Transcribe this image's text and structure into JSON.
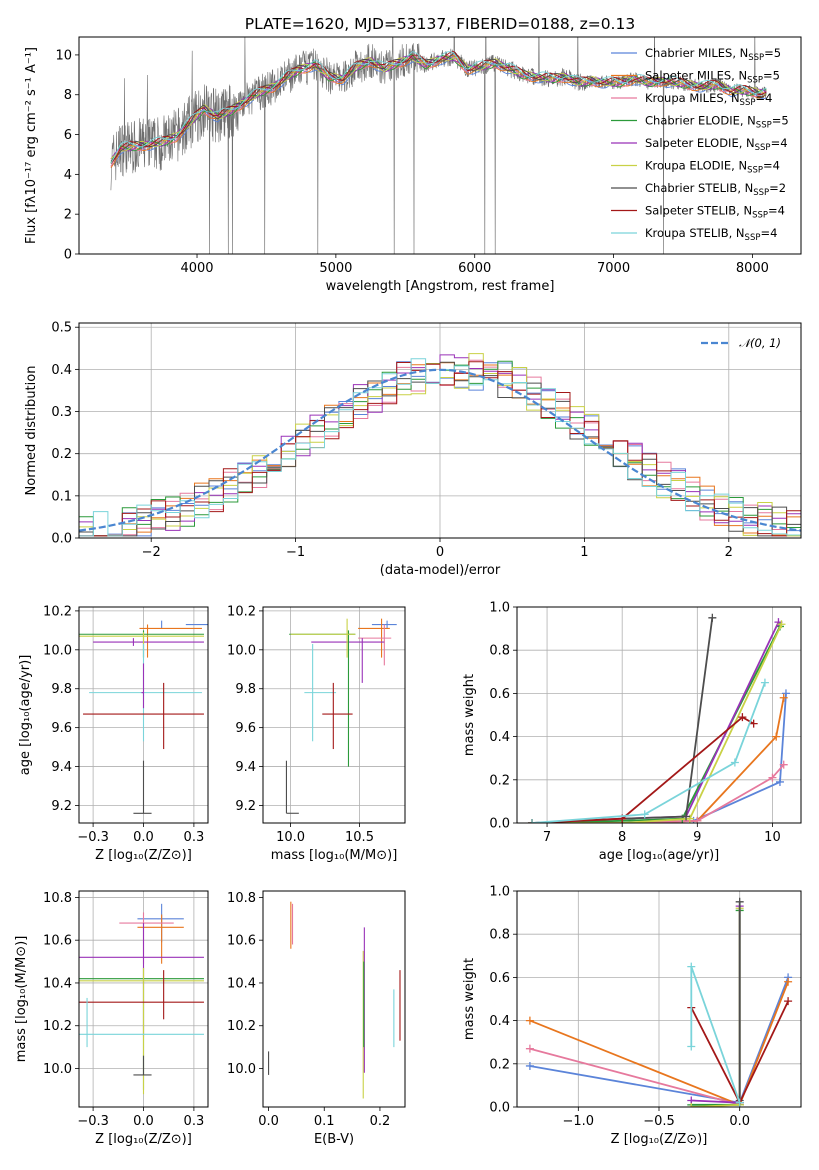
{
  "page": {
    "title": "PLATE=1620, MJD=53137, FIBERID=0188, z=0.13"
  },
  "model_colors": [
    "#5b84d9",
    "#e8761e",
    "#e6799d",
    "#2b9a3a",
    "#9932b8",
    "#c9d146",
    "#4d4d4d",
    "#a31818",
    "#7ad4da"
  ],
  "chart_data": [
    {
      "id": "spectrum",
      "type": "line",
      "title": "PLATE=1620, MJD=53137, FIBERID=0188, z=0.13",
      "xlabel": "wavelength [Angstrom, rest frame]",
      "ylabel": "Flux [fλ10⁻¹⁷ erg cm⁻² s⁻¹ A⁻¹]",
      "xlim": [
        3150,
        8350
      ],
      "ylim": [
        0,
        10.9
      ],
      "xticks": [
        4000,
        5000,
        6000,
        7000,
        8000
      ],
      "yticks": [
        0,
        2,
        4,
        6,
        8,
        10
      ],
      "legend_position": "top-right",
      "legend": [
        {
          "label": "Chabrier MILES, N",
          "sub": "SSP",
          "tail": "=5",
          "color": "#5b84d9"
        },
        {
          "label": "Salpeter MILES, N",
          "sub": "SSP",
          "tail": "=5",
          "color": "#e8761e"
        },
        {
          "label": "Kroupa MILES, N",
          "sub": "SSP",
          "tail": "=4",
          "color": "#e6799d"
        },
        {
          "label": "Chabrier ELODIE, N",
          "sub": "SSP",
          "tail": "=5",
          "color": "#2b9a3a"
        },
        {
          "label": "Salpeter ELODIE, N",
          "sub": "SSP",
          "tail": "=4",
          "color": "#9932b8"
        },
        {
          "label": "Kroupa ELODIE, N",
          "sub": "SSP",
          "tail": "=4",
          "color": "#c9d146"
        },
        {
          "label": "Chabrier STELIB, N",
          "sub": "SSP",
          "tail": "=2",
          "color": "#4d4d4d"
        },
        {
          "label": "Salpeter STELIB, N",
          "sub": "SSP",
          "tail": "=4",
          "color": "#a31818"
        },
        {
          "label": "Kroupa STELIB, N",
          "sub": "SSP",
          "tail": "=4",
          "color": "#7ad4da"
        }
      ],
      "model_curve": {
        "x": [
          3380,
          3450,
          3550,
          3650,
          3750,
          3850,
          3950,
          4050,
          4150,
          4250,
          4350,
          4450,
          4550,
          4650,
          4750,
          4850,
          4950,
          5050,
          5150,
          5250,
          5350,
          5450,
          5550,
          5650,
          5750,
          5850,
          5950,
          6050,
          6150,
          6250,
          6350,
          6450,
          6550,
          6650,
          6750,
          6850,
          6950,
          7050,
          7150,
          7250,
          7350,
          7450,
          7550,
          7650,
          7750,
          7850,
          7950,
          8050,
          8100
        ],
        "y": [
          4.6,
          5.3,
          5.4,
          5.5,
          5.6,
          5.9,
          6.6,
          7.3,
          6.9,
          7.2,
          7.7,
          8.1,
          8.4,
          8.9,
          9.3,
          9.5,
          8.9,
          8.8,
          9.4,
          9.7,
          9.3,
          9.6,
          9.9,
          9.5,
          9.8,
          9.9,
          9.3,
          9.4,
          9.6,
          9.3,
          9.0,
          8.9,
          8.8,
          8.9,
          8.6,
          8.7,
          8.6,
          8.6,
          8.8,
          8.6,
          8.7,
          8.6,
          8.5,
          8.4,
          8.5,
          8.2,
          8.2,
          8.1,
          8.1
        ]
      }
    },
    {
      "id": "residuals",
      "type": "histogram",
      "xlabel": "(data-model)/error",
      "ylabel": "Normed distribution",
      "xlim": [
        -2.5,
        2.5
      ],
      "ylim": [
        0,
        0.51
      ],
      "xticks": [
        -2,
        -1,
        0,
        1,
        2
      ],
      "yticks": [
        0.0,
        0.1,
        0.2,
        0.3,
        0.4,
        0.5
      ],
      "grid": true,
      "legend_position": "top-right",
      "reference_curve": {
        "label": "𝒩(0, 1)",
        "mean": 0,
        "sigma": 1,
        "color": "#4a86d1"
      }
    },
    {
      "id": "age-vs-Z",
      "type": "errorbar",
      "xlabel": "Z [log₁₀(Z/Z⊙)]",
      "ylabel": "age  [log₁₀(age/yr)]",
      "xlim": [
        -0.32,
        0.32
      ],
      "ylim": [
        9.11,
        10.22
      ],
      "xticks": [
        -0.25,
        0.0,
        0.25
      ],
      "yticks": [
        9.2,
        9.4,
        9.6,
        9.8,
        10.0,
        10.2
      ],
      "grid": true,
      "points": [
        {
          "x": 0.09,
          "y": 10.13,
          "xlo": 0.21,
          "xhi": 0.33,
          "ylo": 10.11,
          "yhi": 10.15,
          "c": 0
        },
        {
          "x": 0.02,
          "y": 10.11,
          "xlo": -0.02,
          "xhi": 0.29,
          "ylo": 9.96,
          "yhi": 10.13,
          "c": 1
        },
        {
          "x": -0.05,
          "y": 10.04,
          "xlo": -0.25,
          "xhi": 0.3,
          "ylo": 10.02,
          "yhi": 10.06,
          "c": 4
        },
        {
          "x": 0.0,
          "y": 10.08,
          "xlo": -0.33,
          "xhi": 0.3,
          "ylo": 9.96,
          "yhi": 10.1,
          "c": 3
        },
        {
          "x": 0.0,
          "y": 10.07,
          "xlo": -0.33,
          "xhi": 0.3,
          "ylo": 9.96,
          "yhi": 10.09,
          "c": 5
        },
        {
          "x": 0.0,
          "y": 9.78,
          "xlo": -0.27,
          "xhi": 0.29,
          "ylo": 9.53,
          "yhi": 10.03,
          "c": 8
        },
        {
          "x": 0.1,
          "y": 9.67,
          "xlo": -0.3,
          "xhi": 0.3,
          "ylo": 9.49,
          "yhi": 9.83,
          "c": 7
        },
        {
          "x": 0.0,
          "y": 9.16,
          "xlo": -0.05,
          "xhi": 0.04,
          "ylo": 9.16,
          "yhi": 9.43,
          "c": 6
        },
        {
          "x": 0.0,
          "y": 9.78,
          "xlo": -0.01,
          "xhi": 0.0,
          "ylo": 9.7,
          "yhi": 9.93,
          "c": 4
        }
      ]
    },
    {
      "id": "age-vs-mass",
      "type": "errorbar",
      "xlabel": "mass [log₁₀(M/M⊙)]",
      "ylabel": "",
      "xlim": [
        9.8,
        10.83
      ],
      "ylim": [
        9.11,
        10.22
      ],
      "xticks": [
        10.0,
        10.5
      ],
      "yticks": [
        9.2,
        9.4,
        9.6,
        9.8,
        10.0,
        10.2
      ],
      "grid": true,
      "points": [
        {
          "x": 10.7,
          "y": 10.13,
          "xlo": 10.59,
          "xhi": 10.77,
          "ylo": 10.11,
          "yhi": 10.15,
          "c": 0
        },
        {
          "x": 10.66,
          "y": 10.11,
          "xlo": 10.49,
          "xhi": 10.72,
          "ylo": 9.96,
          "yhi": 10.16,
          "c": 1
        },
        {
          "x": 10.68,
          "y": 10.06,
          "xlo": 10.49,
          "xhi": 10.73,
          "ylo": 9.92,
          "yhi": 10.13,
          "c": 2
        },
        {
          "x": 10.52,
          "y": 10.04,
          "xlo": 10.15,
          "xhi": 10.68,
          "ylo": 9.83,
          "yhi": 10.06,
          "c": 4
        },
        {
          "x": 10.42,
          "y": 10.08,
          "xlo": 9.99,
          "xhi": 10.47,
          "ylo": 9.4,
          "yhi": 10.1,
          "c": 3
        },
        {
          "x": 10.41,
          "y": 10.08,
          "xlo": 10.0,
          "xhi": 10.47,
          "ylo": 9.96,
          "yhi": 10.16,
          "c": 5
        },
        {
          "x": 10.16,
          "y": 9.78,
          "xlo": 10.1,
          "xhi": 10.33,
          "ylo": 9.53,
          "yhi": 10.03,
          "c": 8
        },
        {
          "x": 10.31,
          "y": 9.67,
          "xlo": 10.23,
          "xhi": 10.45,
          "ylo": 9.49,
          "yhi": 9.83,
          "c": 7
        },
        {
          "x": 9.97,
          "y": 9.16,
          "xlo": 9.97,
          "xhi": 10.06,
          "ylo": 9.16,
          "yhi": 9.43,
          "c": 6
        }
      ]
    },
    {
      "id": "mass-weight-vs-age",
      "type": "line",
      "xlabel": "age  [log₁₀(age/yr)]",
      "ylabel": "mass weight",
      "xlim": [
        6.6,
        10.38
      ],
      "ylim": [
        0,
        1.0
      ],
      "xticks": [
        7,
        8,
        9,
        10
      ],
      "yticks": [
        0.0,
        0.2,
        0.4,
        0.6,
        0.8,
        1.0
      ],
      "grid": true,
      "series": [
        {
          "c": 0,
          "x": [
            6.8,
            8.0,
            8.95,
            10.1,
            10.18
          ],
          "y": [
            0.0,
            0.0,
            0.01,
            0.19,
            0.6
          ]
        },
        {
          "c": 1,
          "x": [
            6.8,
            8.0,
            9.0,
            10.05,
            10.15
          ],
          "y": [
            0.0,
            0.0,
            0.01,
            0.4,
            0.58
          ]
        },
        {
          "c": 2,
          "x": [
            6.8,
            8.0,
            9.0,
            10.0,
            10.15
          ],
          "y": [
            0.0,
            0.0,
            0.01,
            0.21,
            0.27
          ]
        },
        {
          "c": 3,
          "x": [
            6.8,
            8.0,
            8.8,
            10.1
          ],
          "y": [
            0.0,
            0.01,
            0.02,
            0.91
          ]
        },
        {
          "c": 4,
          "x": [
            6.8,
            8.0,
            8.85,
            10.08
          ],
          "y": [
            0.0,
            0.02,
            0.03,
            0.93
          ]
        },
        {
          "c": 5,
          "x": [
            6.8,
            8.0,
            8.9,
            10.12
          ],
          "y": [
            0.0,
            0.0,
            0.02,
            0.92
          ]
        },
        {
          "c": 6,
          "x": [
            8.0,
            8.85,
            9.2
          ],
          "y": [
            0.02,
            0.03,
            0.95
          ]
        },
        {
          "c": 7,
          "x": [
            6.8,
            8.0,
            9.6,
            9.75
          ],
          "y": [
            0.0,
            0.02,
            0.49,
            0.46
          ]
        },
        {
          "c": 8,
          "x": [
            6.8,
            8.3,
            9.5,
            9.9
          ],
          "y": [
            0.0,
            0.04,
            0.28,
            0.65
          ]
        }
      ]
    },
    {
      "id": "mass-vs-Z",
      "type": "errorbar",
      "xlabel": "Z [log₁₀(Z/Z⊙)]",
      "ylabel": "mass [log₁₀(M/M⊙)]",
      "xlim": [
        -0.32,
        0.32
      ],
      "ylim": [
        9.82,
        10.83
      ],
      "xticks": [
        -0.25,
        0.0,
        0.25
      ],
      "yticks": [
        10.0,
        10.2,
        10.4,
        10.6,
        10.8
      ],
      "grid": true,
      "points": [
        {
          "x": 0.09,
          "y": 10.7,
          "xlo": -0.03,
          "xhi": 0.2,
          "ylo": 10.59,
          "yhi": 10.77,
          "c": 0
        },
        {
          "x": 0.09,
          "y": 10.66,
          "xlo": -0.03,
          "xhi": 0.2,
          "ylo": 10.49,
          "yhi": 10.72,
          "c": 1
        },
        {
          "x": 0.0,
          "y": 10.68,
          "xlo": -0.12,
          "xhi": 0.15,
          "ylo": 10.49,
          "yhi": 10.73,
          "c": 2
        },
        {
          "x": 0.0,
          "y": 10.52,
          "xlo": -0.32,
          "xhi": 0.3,
          "ylo": 10.15,
          "yhi": 10.68,
          "c": 4
        },
        {
          "x": 0.0,
          "y": 10.42,
          "xlo": -0.32,
          "xhi": 0.3,
          "ylo": 9.9,
          "yhi": 10.47,
          "c": 3
        },
        {
          "x": 0.0,
          "y": 10.41,
          "xlo": -0.32,
          "xhi": 0.3,
          "ylo": 9.88,
          "yhi": 10.47,
          "c": 5
        },
        {
          "x": 0.1,
          "y": 10.31,
          "xlo": -0.32,
          "xhi": 0.3,
          "ylo": 10.23,
          "yhi": 10.46,
          "c": 7
        },
        {
          "x": -0.28,
          "y": 10.16,
          "xlo": -0.32,
          "xhi": 0.3,
          "ylo": 10.1,
          "yhi": 10.33,
          "c": 8
        },
        {
          "x": 0.0,
          "y": 9.97,
          "xlo": -0.05,
          "xhi": 0.04,
          "ylo": 9.97,
          "yhi": 10.06,
          "c": 6
        }
      ]
    },
    {
      "id": "mass-vs-EBV",
      "type": "errorbar",
      "xlabel": "E(B-V)",
      "ylabel": "",
      "xlim": [
        -0.01,
        0.245
      ],
      "ylim": [
        9.82,
        10.83
      ],
      "xticks": [
        0.0,
        0.1,
        0.2
      ],
      "yticks": [
        10.0,
        10.2,
        10.4,
        10.6,
        10.8
      ],
      "grid": false,
      "points": [
        {
          "x": 0.04,
          "ylo": 10.56,
          "yhi": 10.78,
          "c": 1
        },
        {
          "x": 0.043,
          "ylo": 10.58,
          "yhi": 10.77,
          "c": 2
        },
        {
          "x": 0.0,
          "ylo": 9.97,
          "yhi": 10.08,
          "c": 6
        },
        {
          "x": 0.17,
          "ylo": 9.86,
          "yhi": 10.55,
          "c": 5
        },
        {
          "x": 0.172,
          "ylo": 9.98,
          "yhi": 10.66,
          "c": 4
        },
        {
          "x": 0.171,
          "ylo": 10.1,
          "yhi": 10.5,
          "c": 3
        },
        {
          "x": 0.225,
          "ylo": 10.1,
          "yhi": 10.37,
          "c": 8
        },
        {
          "x": 0.236,
          "ylo": 10.13,
          "yhi": 10.46,
          "c": 7
        }
      ]
    },
    {
      "id": "mass-weight-vs-Z",
      "type": "line",
      "xlabel": "Z [log₁₀(Z/Z⊙)]",
      "ylabel": "mass weight",
      "xlim": [
        -1.38,
        0.38
      ],
      "ylim": [
        0,
        1.0
      ],
      "xticks": [
        -1.0,
        -0.5,
        0.0
      ],
      "yticks": [
        0.0,
        0.2,
        0.4,
        0.6,
        0.8,
        1.0
      ],
      "grid": true,
      "series": [
        {
          "c": 0,
          "x": [
            -1.3,
            0.0,
            0.3
          ],
          "y": [
            0.19,
            0.02,
            0.6
          ]
        },
        {
          "c": 1,
          "x": [
            -1.3,
            0.0,
            0.3
          ],
          "y": [
            0.4,
            0.01,
            0.58
          ]
        },
        {
          "c": 2,
          "x": [
            -1.3,
            0.0
          ],
          "y": [
            0.27,
            0.01
          ]
        },
        {
          "c": 3,
          "x": [
            -0.3,
            0.0,
            0.0
          ],
          "y": [
            0.01,
            0.01,
            0.91
          ]
        },
        {
          "c": 4,
          "x": [
            -0.3,
            0.0,
            0.0
          ],
          "y": [
            0.03,
            0.02,
            0.93
          ]
        },
        {
          "c": 5,
          "x": [
            -0.3,
            0.0,
            0.0
          ],
          "y": [
            0.0,
            0.01,
            0.92
          ]
        },
        {
          "c": 6,
          "x": [
            0.0,
            0.0
          ],
          "y": [
            0.03,
            0.95
          ]
        },
        {
          "c": 7,
          "x": [
            -0.3,
            0.0,
            0.3
          ],
          "y": [
            0.46,
            0.02,
            0.49
          ]
        },
        {
          "c": 8,
          "x": [
            -0.3,
            -0.3,
            0.0
          ],
          "y": [
            0.28,
            0.65,
            0.02
          ]
        }
      ]
    }
  ]
}
